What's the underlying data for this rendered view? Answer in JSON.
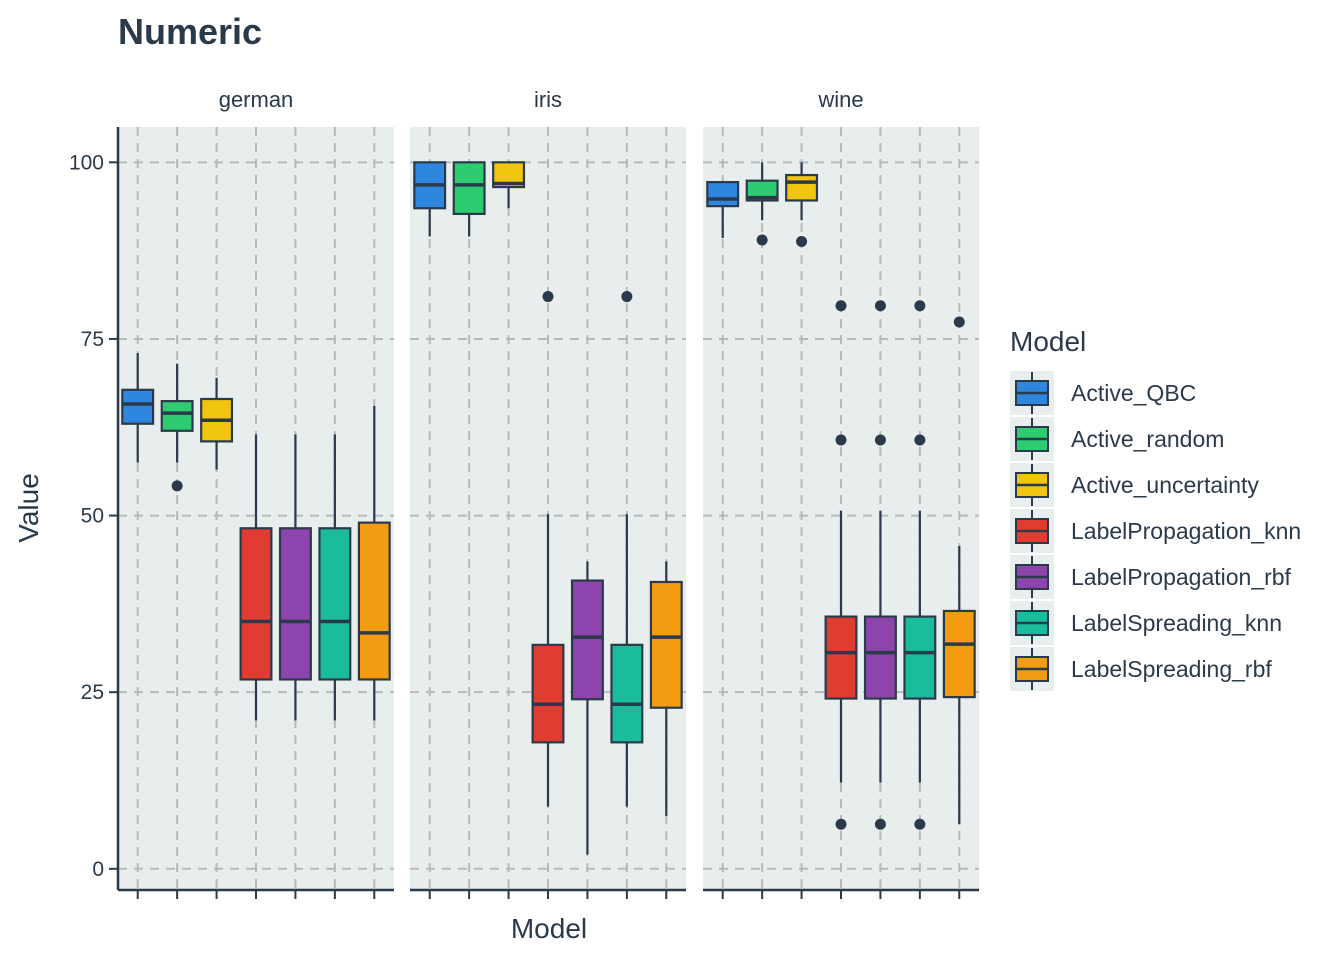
{
  "chart_data": {
    "type": "boxplot",
    "title": "Numeric",
    "xlabel": "Model",
    "ylabel": "Value",
    "ylim": [
      -3,
      105
    ],
    "yticks": [
      0,
      25,
      50,
      75,
      100
    ],
    "grid": true,
    "legend_title": "Model",
    "legend_position": "right",
    "models": [
      {
        "name": "Active_QBC",
        "color": "#2e86de"
      },
      {
        "name": "Active_random",
        "color": "#2ecc71"
      },
      {
        "name": "Active_uncertainty",
        "color": "#f1c40f"
      },
      {
        "name": "LabelPropagation_knn",
        "color": "#e03c31"
      },
      {
        "name": "LabelPropagation_rbf",
        "color": "#8e44ad"
      },
      {
        "name": "LabelSpreading_knn",
        "color": "#1abc9c"
      },
      {
        "name": "LabelSpreading_rbf",
        "color": "#f39c12"
      }
    ],
    "panels": [
      {
        "name": "german",
        "boxes": [
          {
            "min": 57.5,
            "q1": 63,
            "median": 65.8,
            "q3": 67.8,
            "max": 73,
            "outliers": []
          },
          {
            "min": 57.5,
            "q1": 62,
            "median": 64.5,
            "q3": 66.2,
            "max": 71.5,
            "outliers": [
              54.2
            ]
          },
          {
            "min": 56.5,
            "q1": 60.5,
            "median": 63.5,
            "q3": 66.5,
            "max": 69.5,
            "outliers": []
          },
          {
            "min": 21,
            "q1": 26.8,
            "median": 35,
            "q3": 48.2,
            "max": 61.5,
            "outliers": []
          },
          {
            "min": 21,
            "q1": 26.8,
            "median": 35,
            "q3": 48.2,
            "max": 61.5,
            "outliers": []
          },
          {
            "min": 21,
            "q1": 26.8,
            "median": 35,
            "q3": 48.2,
            "max": 61.5,
            "outliers": []
          },
          {
            "min": 21,
            "q1": 26.8,
            "median": 33.4,
            "q3": 49,
            "max": 65.5,
            "outliers": []
          }
        ]
      },
      {
        "name": "iris",
        "boxes": [
          {
            "min": 89.5,
            "q1": 93.5,
            "median": 96.8,
            "q3": 100,
            "max": 100,
            "outliers": []
          },
          {
            "min": 89.5,
            "q1": 92.7,
            "median": 96.8,
            "q3": 100,
            "max": 100,
            "outliers": []
          },
          {
            "min": 93.5,
            "q1": 96.5,
            "median": 97,
            "q3": 100,
            "max": 100,
            "outliers": []
          },
          {
            "min": 8.8,
            "q1": 17.9,
            "median": 23.3,
            "q3": 31.7,
            "max": 50.2,
            "outliers": [
              81
            ]
          },
          {
            "min": 2,
            "q1": 24,
            "median": 32.8,
            "q3": 40.8,
            "max": 43.5,
            "outliers": []
          },
          {
            "min": 8.8,
            "q1": 17.9,
            "median": 23.3,
            "q3": 31.7,
            "max": 50.2,
            "outliers": [
              81
            ]
          },
          {
            "min": 7.5,
            "q1": 22.8,
            "median": 32.8,
            "q3": 40.6,
            "max": 43.5,
            "outliers": []
          }
        ]
      },
      {
        "name": "wine",
        "boxes": [
          {
            "min": 89.3,
            "q1": 93.8,
            "median": 94.8,
            "q3": 97.2,
            "max": 97.2,
            "outliers": []
          },
          {
            "min": 91.8,
            "q1": 94.6,
            "median": 95,
            "q3": 97.4,
            "max": 100,
            "outliers": [
              89
            ]
          },
          {
            "min": 91.8,
            "q1": 94.6,
            "median": 97.2,
            "q3": 98.2,
            "max": 100,
            "outliers": [
              88.8
            ]
          },
          {
            "min": 12.2,
            "q1": 24.1,
            "median": 30.6,
            "q3": 35.7,
            "max": 50.7,
            "outliers": [
              79.7,
              60.7,
              6.3
            ]
          },
          {
            "min": 12.2,
            "q1": 24.1,
            "median": 30.6,
            "q3": 35.7,
            "max": 50.7,
            "outliers": [
              79.7,
              60.7,
              6.3
            ]
          },
          {
            "min": 12.2,
            "q1": 24.1,
            "median": 30.6,
            "q3": 35.7,
            "max": 50.7,
            "outliers": [
              79.7,
              60.7,
              6.3
            ]
          },
          {
            "min": 6.3,
            "q1": 24.3,
            "median": 31.8,
            "q3": 36.5,
            "max": 45.7,
            "outliers": [
              77.4
            ]
          }
        ]
      }
    ]
  }
}
